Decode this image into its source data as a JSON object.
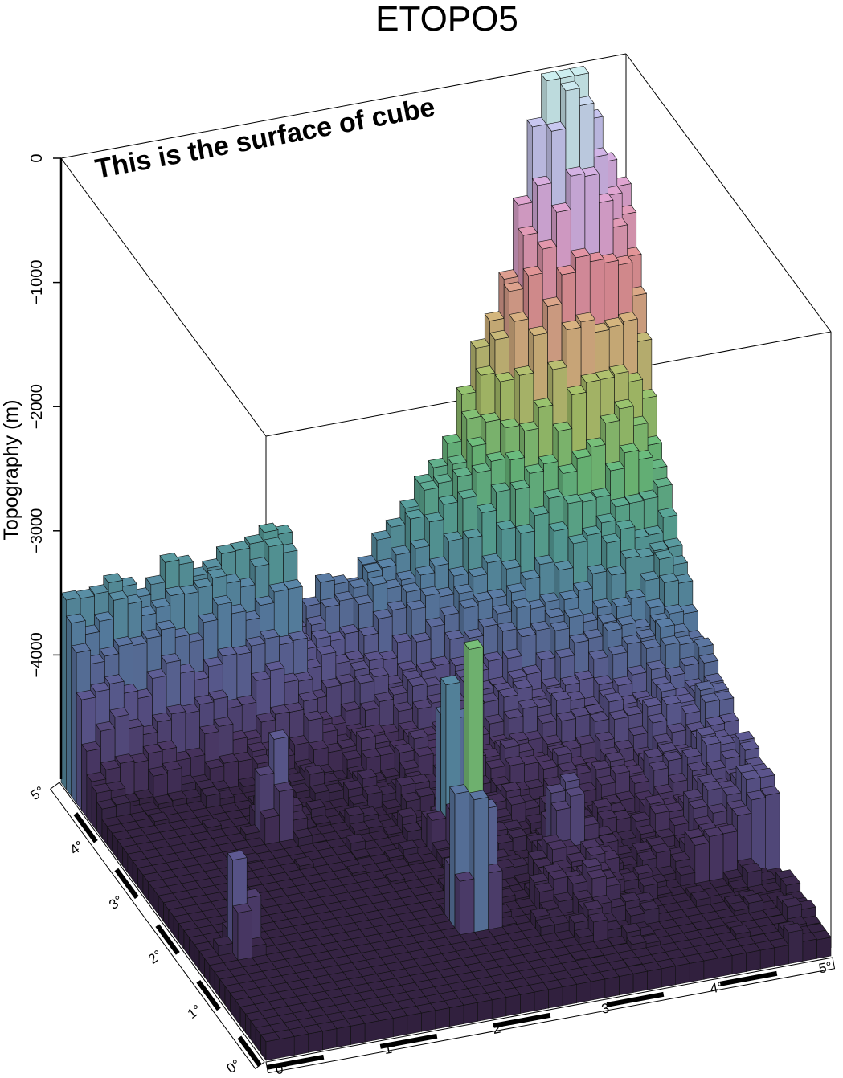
{
  "chart_data": {
    "type": "3d-bar-surface",
    "title": "ETOPO5",
    "zlabel": "Topography (m)",
    "z_ticks": [
      0,
      -1000,
      -2000,
      -3000,
      -4000
    ],
    "z_tick_labels": [
      "0",
      "−1000",
      "−2000",
      "−3000",
      "−4000"
    ],
    "zlim": [
      -5000,
      0
    ],
    "x_tick_labels": [
      "0°",
      "1°",
      "2°",
      "3°",
      "4°",
      "5°"
    ],
    "y_tick_labels": [
      "0°",
      "1°",
      "2°",
      "3°",
      "4°",
      "5°"
    ],
    "xlim": [
      0,
      5
    ],
    "ylim": [
      0,
      5
    ],
    "annotation": "This is the surface of cube",
    "colormap": [
      "#2a1a33",
      "#4a3562",
      "#5e5a93",
      "#5a83a8",
      "#58a39b",
      "#6cbe7c",
      "#a6c46a",
      "#d7b47f",
      "#e3909a",
      "#e0a8d8",
      "#c7bdf0",
      "#cdeff0"
    ]
  }
}
